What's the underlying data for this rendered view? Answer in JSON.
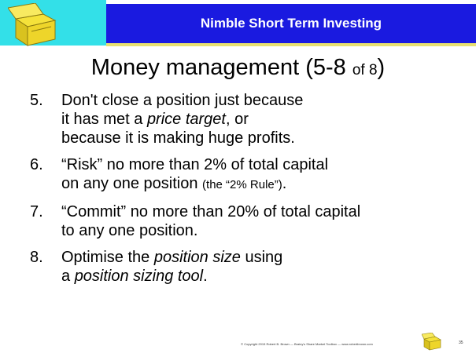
{
  "header": {
    "title": "Nimble Short Term Investing"
  },
  "slide": {
    "title": [
      {
        "text": "Money management (5-8 "
      },
      {
        "text": "of 8",
        "style": "small"
      },
      {
        "text": ")"
      }
    ],
    "items": [
      {
        "number": "5.",
        "lines": [
          [
            {
              "text": "Don't close a position just because"
            }
          ],
          [
            {
              "text": "it has met a "
            },
            {
              "text": "price target",
              "style": "italic"
            },
            {
              "text": ", or"
            }
          ],
          [
            {
              "text": "because it is making huge profits."
            }
          ]
        ]
      },
      {
        "number": "6.",
        "lines": [
          [
            {
              "text": "“Risk” no more than 2% of total capital"
            }
          ],
          [
            {
              "text": "on any one position "
            },
            {
              "text": "(the “2% Rule”)",
              "style": "small"
            },
            {
              "text": "."
            }
          ]
        ]
      },
      {
        "number": "7.",
        "lines": [
          [
            {
              "text": "“Commit” no more than 20% of total capital"
            }
          ],
          [
            {
              "text": "to any one position."
            }
          ]
        ]
      },
      {
        "number": "8.",
        "lines": [
          [
            {
              "text": "Optimise the "
            },
            {
              "text": "position size",
              "style": "italic"
            },
            {
              "text": " using"
            }
          ],
          [
            {
              "text": "a "
            },
            {
              "text": "position sizing tool",
              "style": "italic"
            },
            {
              "text": "."
            }
          ]
        ]
      }
    ]
  },
  "footer": {
    "copyright": "© Copyright 2015 Robert B. Brown — Brainy's Share Market Toolbox — www.robertbrown.com",
    "page": "35"
  }
}
